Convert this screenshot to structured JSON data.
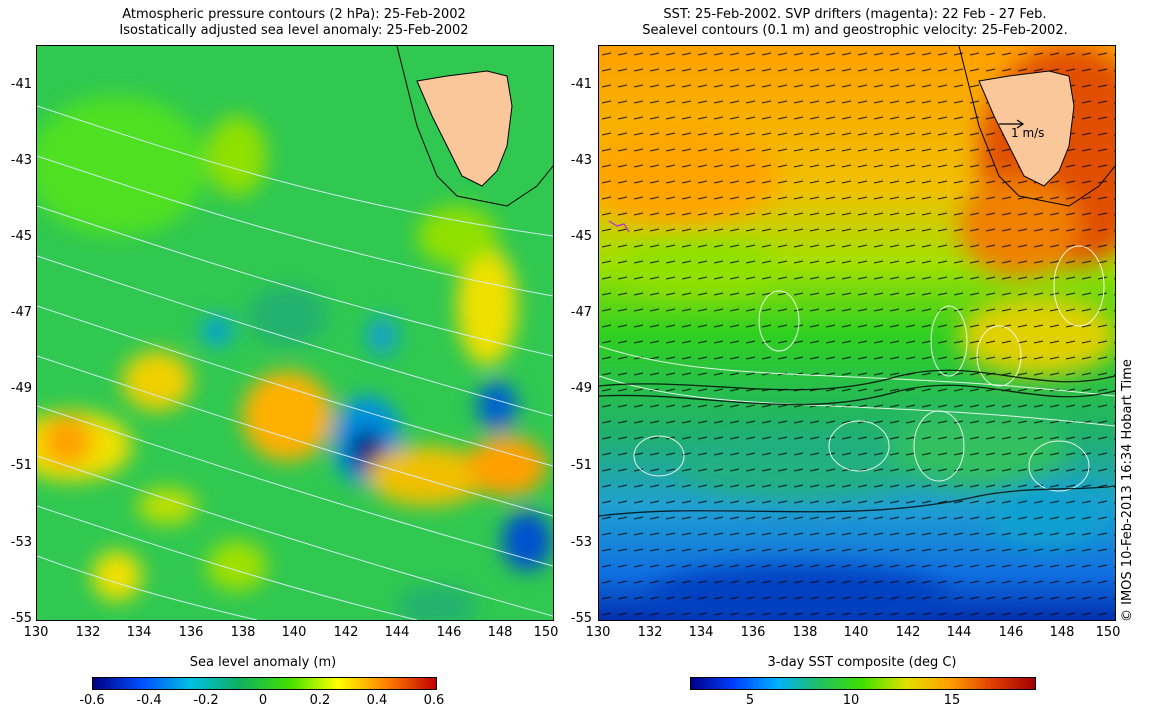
{
  "left_panel": {
    "title_line1": "Atmospheric pressure contours (2 hPa): 25-Feb-2002",
    "title_line2": "Isostatically adjusted sea level anomaly: 25-Feb-2002",
    "colorbar_title": "Sea level anomaly (m)",
    "colorbar_ticks": [
      "-0.6",
      "-0.4",
      "-0.2",
      "0",
      "0.2",
      "0.4",
      "0.6"
    ]
  },
  "right_panel": {
    "title_line1": "SST: 25-Feb-2002. SVP drifters (magenta): 22 Feb - 27 Feb.",
    "title_line2": "Sealevel contours (0.1 m) and geostrophic velocity: 25-Feb-2002.",
    "colorbar_title": "3-day SST composite (deg C)",
    "colorbar_ticks": [
      "5",
      "10",
      "15"
    ],
    "velocity_scale_label": "1 m/s"
  },
  "latitude_ticks": [
    "-41",
    "-43",
    "-45",
    "-47",
    "-49",
    "-51",
    "-53",
    "-55"
  ],
  "longitude_ticks": [
    "130",
    "132",
    "134",
    "136",
    "138",
    "140",
    "142",
    "144",
    "146",
    "148",
    "150"
  ],
  "credit": "© IMOS 10-Feb-2013 16:34 Hobart Time",
  "colors": {
    "land": "#f9c79a",
    "sla_scale": [
      "#000080",
      "#0050ff",
      "#00c0e0",
      "#10b060",
      "#40e000",
      "#ffff00",
      "#ff8000",
      "#c00000"
    ],
    "sst_scale": [
      "#00008a",
      "#0040ff",
      "#00b0ff",
      "#20c060",
      "#40e000",
      "#e0e000",
      "#ffa000",
      "#e04000",
      "#a00000"
    ]
  }
}
